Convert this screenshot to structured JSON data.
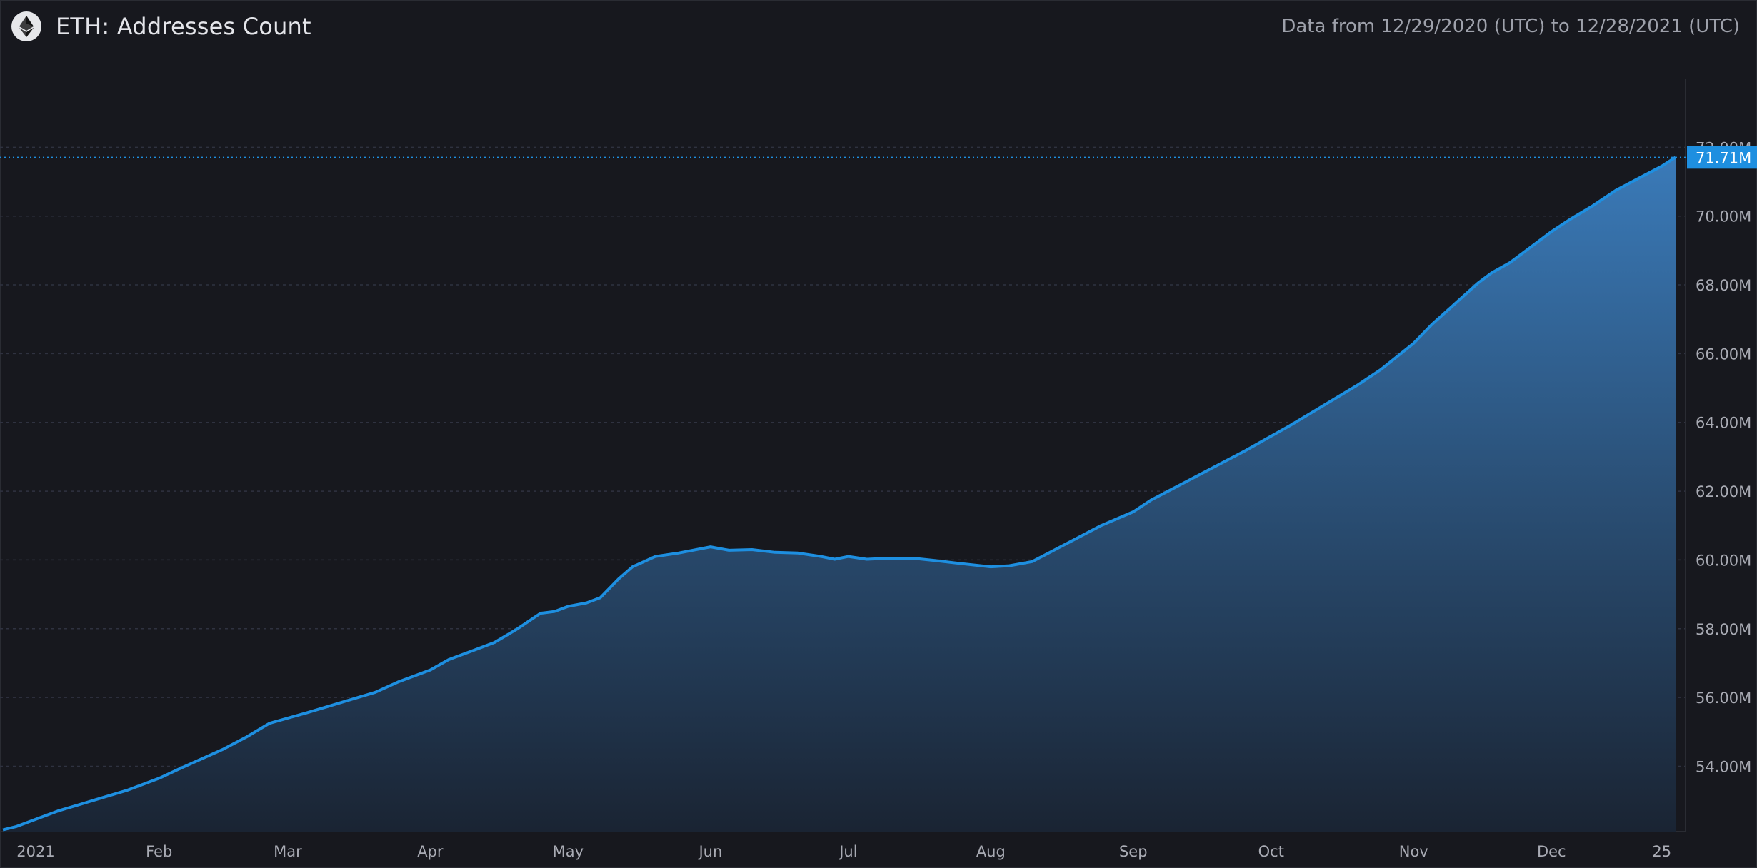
{
  "header": {
    "title": "ETH: Addresses Count",
    "date_range": "Data from 12/29/2020 (UTC) to 12/28/2021 (UTC)"
  },
  "colors": {
    "background": "#17181e",
    "line": "#1e8fe0",
    "area_top": "#3a7ab8",
    "area_bottom": "#1a2433",
    "last_value_badge": "#1e8fe0",
    "grid": "#2f3240"
  },
  "icons": {
    "logo": "ethereum-icon"
  },
  "chart_data": {
    "type": "area",
    "title": "ETH: Addresses Count",
    "unit": "M",
    "ylim": [
      52.1,
      74.0
    ],
    "y_ticks": [
      {
        "value": 54,
        "label": "54.00M"
      },
      {
        "value": 56,
        "label": "56.00M"
      },
      {
        "value": 58,
        "label": "58.00M"
      },
      {
        "value": 60,
        "label": "60.00M"
      },
      {
        "value": 62,
        "label": "62.00M"
      },
      {
        "value": 64,
        "label": "64.00M"
      },
      {
        "value": 66,
        "label": "66.00M"
      },
      {
        "value": 68,
        "label": "68.00M"
      },
      {
        "value": 70,
        "label": "70.00M"
      },
      {
        "value": 72,
        "label": "72.00M"
      }
    ],
    "x_ticks": [
      {
        "date": "2021-01-01",
        "label": "2021"
      },
      {
        "date": "2021-02-01",
        "label": "Feb"
      },
      {
        "date": "2021-03-01",
        "label": "Mar"
      },
      {
        "date": "2021-04-01",
        "label": "Apr"
      },
      {
        "date": "2021-05-01",
        "label": "May"
      },
      {
        "date": "2021-06-01",
        "label": "Jun"
      },
      {
        "date": "2021-07-01",
        "label": "Jul"
      },
      {
        "date": "2021-08-01",
        "label": "Aug"
      },
      {
        "date": "2021-09-01",
        "label": "Sep"
      },
      {
        "date": "2021-10-01",
        "label": "Oct"
      },
      {
        "date": "2021-11-01",
        "label": "Nov"
      },
      {
        "date": "2021-12-01",
        "label": "Dec"
      },
      {
        "date": "2021-12-25",
        "label": "25"
      }
    ],
    "x_range": [
      "2020-12-29",
      "2021-12-28"
    ],
    "last_value": {
      "value": 71.71,
      "label": "71.71M"
    },
    "grid": true,
    "series": [
      {
        "points": [
          [
            "2020-12-29",
            52.15
          ],
          [
            "2021-01-01",
            52.25
          ],
          [
            "2021-01-05",
            52.45
          ],
          [
            "2021-01-10",
            52.7
          ],
          [
            "2021-01-15",
            52.9
          ],
          [
            "2021-01-20",
            53.1
          ],
          [
            "2021-01-25",
            53.3
          ],
          [
            "2021-02-01",
            53.65
          ],
          [
            "2021-02-05",
            53.9
          ],
          [
            "2021-02-10",
            54.2
          ],
          [
            "2021-02-15",
            54.5
          ],
          [
            "2021-02-20",
            54.85
          ],
          [
            "2021-02-25",
            55.25
          ],
          [
            "2021-03-01",
            55.4
          ],
          [
            "2021-03-05",
            55.55
          ],
          [
            "2021-03-10",
            55.75
          ],
          [
            "2021-03-15",
            55.95
          ],
          [
            "2021-03-20",
            56.15
          ],
          [
            "2021-03-25",
            56.45
          ],
          [
            "2021-04-01",
            56.8
          ],
          [
            "2021-04-05",
            57.1
          ],
          [
            "2021-04-10",
            57.35
          ],
          [
            "2021-04-15",
            57.6
          ],
          [
            "2021-04-20",
            58.0
          ],
          [
            "2021-04-25",
            58.45
          ],
          [
            "2021-04-28",
            58.5
          ],
          [
            "2021-05-01",
            58.65
          ],
          [
            "2021-05-05",
            58.75
          ],
          [
            "2021-05-08",
            58.9
          ],
          [
            "2021-05-12",
            59.45
          ],
          [
            "2021-05-15",
            59.8
          ],
          [
            "2021-05-20",
            60.1
          ],
          [
            "2021-05-25",
            60.2
          ],
          [
            "2021-06-01",
            60.38
          ],
          [
            "2021-06-05",
            60.28
          ],
          [
            "2021-06-10",
            60.3
          ],
          [
            "2021-06-15",
            60.22
          ],
          [
            "2021-06-20",
            60.2
          ],
          [
            "2021-06-25",
            60.1
          ],
          [
            "2021-06-28",
            60.02
          ],
          [
            "2021-07-01",
            60.1
          ],
          [
            "2021-07-05",
            60.02
          ],
          [
            "2021-07-10",
            60.05
          ],
          [
            "2021-07-15",
            60.05
          ],
          [
            "2021-07-20",
            59.98
          ],
          [
            "2021-07-25",
            59.9
          ],
          [
            "2021-08-01",
            59.8
          ],
          [
            "2021-08-05",
            59.83
          ],
          [
            "2021-08-10",
            59.95
          ],
          [
            "2021-08-15",
            60.3
          ],
          [
            "2021-08-20",
            60.65
          ],
          [
            "2021-08-25",
            61.0
          ],
          [
            "2021-09-01",
            61.4
          ],
          [
            "2021-09-05",
            61.75
          ],
          [
            "2021-09-10",
            62.1
          ],
          [
            "2021-09-15",
            62.45
          ],
          [
            "2021-09-20",
            62.8
          ],
          [
            "2021-09-25",
            63.15
          ],
          [
            "2021-10-01",
            63.6
          ],
          [
            "2021-10-05",
            63.9
          ],
          [
            "2021-10-10",
            64.3
          ],
          [
            "2021-10-15",
            64.7
          ],
          [
            "2021-10-20",
            65.1
          ],
          [
            "2021-10-25",
            65.55
          ],
          [
            "2021-11-01",
            66.3
          ],
          [
            "2021-11-05",
            66.85
          ],
          [
            "2021-11-10",
            67.45
          ],
          [
            "2021-11-15",
            68.05
          ],
          [
            "2021-11-18",
            68.35
          ],
          [
            "2021-11-22",
            68.65
          ],
          [
            "2021-11-25",
            68.95
          ],
          [
            "2021-12-01",
            69.55
          ],
          [
            "2021-12-05",
            69.9
          ],
          [
            "2021-12-10",
            70.3
          ],
          [
            "2021-12-15",
            70.75
          ],
          [
            "2021-12-20",
            71.1
          ],
          [
            "2021-12-25",
            71.45
          ],
          [
            "2021-12-28",
            71.71
          ]
        ]
      }
    ]
  }
}
